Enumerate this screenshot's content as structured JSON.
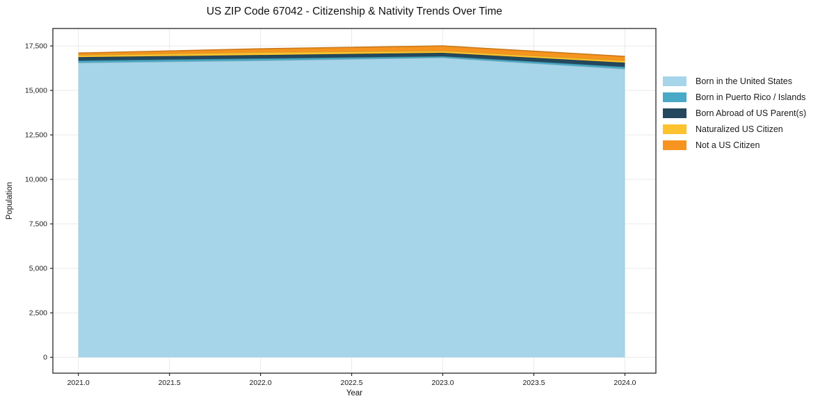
{
  "chart_data": {
    "type": "area",
    "stacked": true,
    "title": "US ZIP Code 67042 - Citizenship & Nativity Trends Over Time",
    "xlabel": "Year",
    "ylabel": "Population",
    "x": [
      2021,
      2022,
      2023,
      2024
    ],
    "series": [
      {
        "name": "Born in the United States",
        "color": "#a6d4e8",
        "values": [
          16560,
          16680,
          16840,
          16210
        ]
      },
      {
        "name": "Born in Puerto Rico / Islands",
        "color": "#48aac6",
        "values": [
          115,
          115,
          80,
          115
        ]
      },
      {
        "name": "Born Abroad of US Parent(s)",
        "color": "#24485d",
        "values": [
          195,
          195,
          195,
          235
        ]
      },
      {
        "name": "Naturalized US Citizen",
        "color": "#fcc22f",
        "values": [
          115,
          155,
          115,
          115
        ]
      },
      {
        "name": "Not a US Citizen",
        "color": "#f6941f",
        "values": [
          115,
          195,
          270,
          235
        ]
      }
    ],
    "totals": [
      17100,
      17340,
      17500,
      16910
    ],
    "xlim": [
      2020.86,
      2024.17
    ],
    "ylim": [
      -890,
      18480
    ],
    "xticks": [
      2021.0,
      2021.5,
      2022.0,
      2022.5,
      2023.0,
      2023.5,
      2024.0
    ],
    "xtick_labels": [
      "2021.0",
      "2021.5",
      "2022.0",
      "2022.5",
      "2023.0",
      "2023.5",
      "2024.0"
    ],
    "yticks": [
      0,
      2500,
      5000,
      7500,
      10000,
      12500,
      15000,
      17500
    ],
    "ytick_labels": [
      "0",
      "2,500",
      "5,000",
      "7,500",
      "10,000",
      "12,500",
      "15,000",
      "17,500"
    ],
    "grid": true,
    "legend_position": "right-of-plot"
  },
  "colors": {
    "background": "#ffffff",
    "grid": "#e9e9e9",
    "spine": "#262626",
    "tick_text": "#1a1a1a"
  }
}
